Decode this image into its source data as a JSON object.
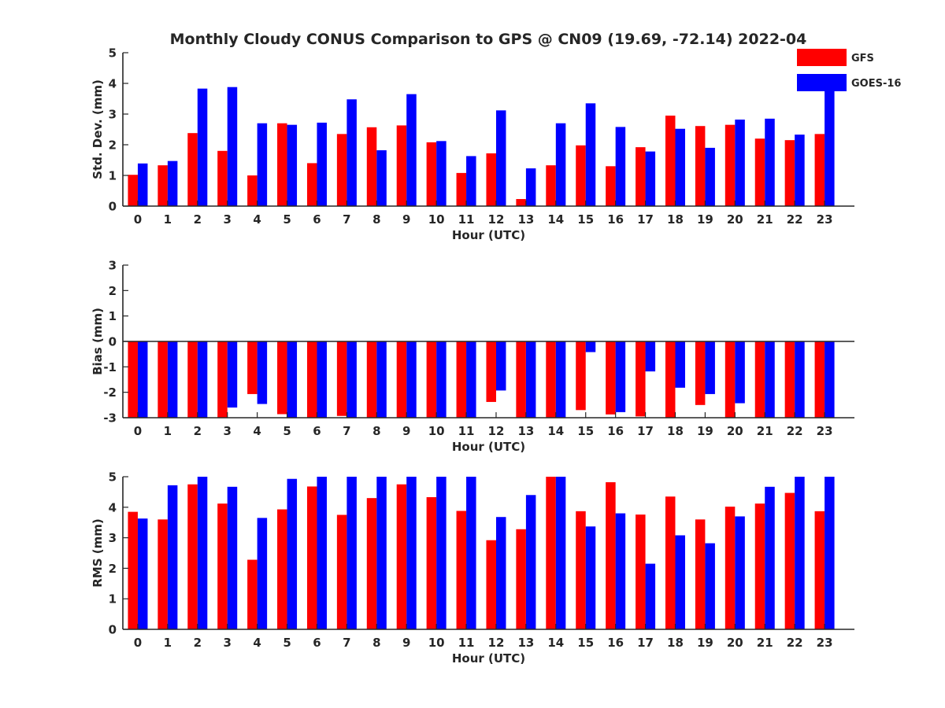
{
  "title": "Monthly Cloudy CONUS Comparison to GPS @ CN09 (19.69, -72.14) 2022-04",
  "colors": {
    "GFS": "#ff0000",
    "GOES-16": "#0000ff",
    "axis": "#262626"
  },
  "legend": {
    "placement": "top-right",
    "entries": [
      "GFS",
      "GOES-16"
    ]
  },
  "chart_data": [
    {
      "type": "bar",
      "xlabel": "Hour (UTC)",
      "ylabel": "Std. Dev. (mm)",
      "ylim": [
        0,
        5
      ],
      "yticks": [
        0,
        1,
        2,
        3,
        4,
        5
      ],
      "categories": [
        "0",
        "1",
        "2",
        "3",
        "4",
        "5",
        "6",
        "7",
        "8",
        "9",
        "10",
        "11",
        "12",
        "13",
        "14",
        "15",
        "16",
        "17",
        "18",
        "19",
        "20",
        "21",
        "22",
        "23"
      ],
      "series": [
        {
          "name": "GFS",
          "values": [
            1.02,
            1.33,
            2.38,
            1.8,
            1.0,
            2.7,
            1.4,
            2.35,
            2.57,
            2.63,
            2.08,
            1.08,
            1.72,
            0.23,
            1.33,
            1.98,
            1.3,
            1.92,
            2.95,
            2.61,
            2.65,
            2.2,
            2.15,
            2.35
          ]
        },
        {
          "name": "GOES-16",
          "values": [
            1.39,
            1.47,
            3.83,
            3.88,
            2.7,
            2.65,
            2.72,
            3.48,
            1.82,
            3.65,
            2.12,
            1.63,
            3.12,
            1.23,
            2.7,
            3.35,
            2.58,
            1.78,
            2.52,
            1.9,
            2.82,
            2.85,
            2.33,
            3.9
          ]
        }
      ]
    },
    {
      "type": "bar",
      "xlabel": "Hour (UTC)",
      "ylabel": "Bias (mm)",
      "ylim": [
        -3,
        3
      ],
      "yticks": [
        -3,
        -2,
        -1,
        0,
        1,
        2,
        3
      ],
      "categories": [
        "0",
        "1",
        "2",
        "3",
        "4",
        "5",
        "6",
        "7",
        "8",
        "9",
        "10",
        "11",
        "12",
        "13",
        "14",
        "15",
        "16",
        "17",
        "18",
        "19",
        "20",
        "21",
        "22",
        "23"
      ],
      "series": [
        {
          "name": "GFS",
          "values": [
            -3.0,
            -3.0,
            -3.0,
            -3.0,
            -2.07,
            -2.86,
            -3.0,
            -2.93,
            -3.0,
            -3.0,
            -3.0,
            -3.0,
            -2.38,
            -3.0,
            -3.0,
            -2.7,
            -2.87,
            -2.95,
            -3.0,
            -2.5,
            -3.0,
            -3.0,
            -3.0,
            -3.0
          ]
        },
        {
          "name": "GOES-16",
          "values": [
            -3.0,
            -3.0,
            -3.0,
            -2.6,
            -2.46,
            -3.0,
            -3.0,
            -3.0,
            -3.0,
            -3.0,
            -3.0,
            -3.0,
            -1.93,
            -3.0,
            -3.0,
            -0.42,
            -2.78,
            -1.18,
            -1.82,
            -2.07,
            -2.43,
            -3.0,
            -3.0,
            -3.0
          ]
        }
      ]
    },
    {
      "type": "bar",
      "xlabel": "Hour (UTC)",
      "ylabel": "RMS (mm)",
      "ylim": [
        0,
        5
      ],
      "yticks": [
        0,
        1,
        2,
        3,
        4,
        5
      ],
      "categories": [
        "0",
        "1",
        "2",
        "3",
        "4",
        "5",
        "6",
        "7",
        "8",
        "9",
        "10",
        "11",
        "12",
        "13",
        "14",
        "15",
        "16",
        "17",
        "18",
        "19",
        "20",
        "21",
        "22",
        "23"
      ],
      "series": [
        {
          "name": "GFS",
          "values": [
            3.85,
            3.6,
            4.75,
            4.12,
            2.28,
            3.93,
            4.68,
            3.75,
            4.3,
            4.75,
            4.33,
            3.88,
            2.92,
            3.28,
            5.0,
            3.87,
            4.82,
            3.76,
            4.35,
            3.6,
            4.02,
            4.12,
            4.47,
            3.87
          ]
        },
        {
          "name": "GOES-16",
          "values": [
            3.63,
            4.72,
            5.0,
            4.67,
            3.65,
            4.93,
            5.0,
            5.0,
            5.0,
            5.0,
            5.0,
            5.0,
            3.68,
            4.4,
            5.0,
            3.37,
            3.8,
            2.15,
            3.08,
            2.82,
            3.7,
            4.67,
            5.0,
            5.0
          ]
        }
      ]
    }
  ]
}
